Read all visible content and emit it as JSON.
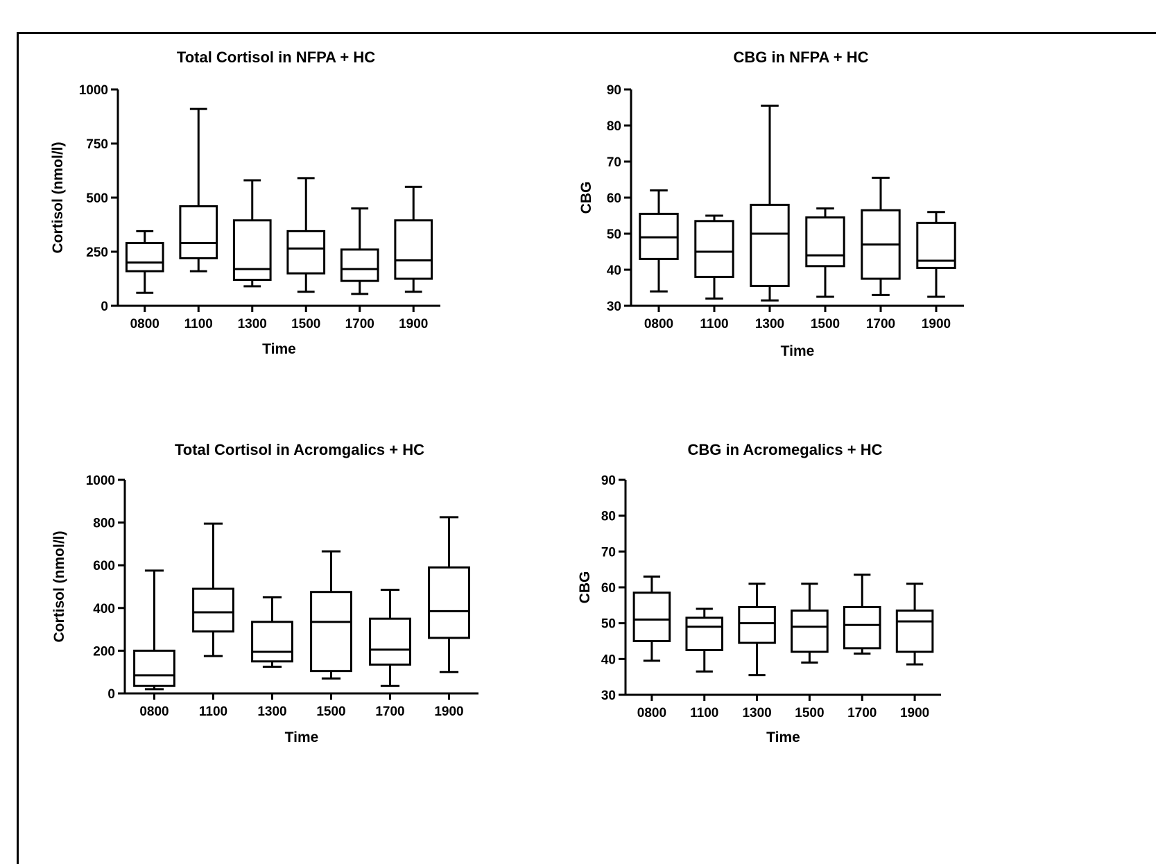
{
  "chart_data": [
    {
      "type": "box",
      "title": "Total Cortisol in NFPA + HC",
      "xlabel": "Time",
      "ylabel": "Cortisol (nmol/l)",
      "ylim": [
        0,
        1000
      ],
      "yticks": [
        "0",
        "250",
        "500",
        "750",
        "1000"
      ],
      "categories": [
        "0800",
        "1100",
        "1300",
        "1500",
        "1700",
        "1900"
      ],
      "boxes": [
        {
          "min": 60,
          "q1": 160,
          "median": 200,
          "q3": 290,
          "max": 345
        },
        {
          "min": 160,
          "q1": 220,
          "median": 290,
          "q3": 460,
          "max": 910
        },
        {
          "min": 90,
          "q1": 120,
          "median": 170,
          "q3": 395,
          "max": 580
        },
        {
          "min": 65,
          "q1": 150,
          "median": 265,
          "q3": 345,
          "max": 590
        },
        {
          "min": 55,
          "q1": 115,
          "median": 170,
          "q3": 260,
          "max": 450
        },
        {
          "min": 65,
          "q1": 125,
          "median": 210,
          "q3": 395,
          "max": 550
        }
      ]
    },
    {
      "type": "box",
      "title": "CBG in NFPA + HC",
      "xlabel": "Time",
      "ylabel": "CBG",
      "ylim": [
        30,
        90
      ],
      "yticks": [
        "30",
        "40",
        "50",
        "60",
        "70",
        "80",
        "90"
      ],
      "categories": [
        "0800",
        "1100",
        "1300",
        "1500",
        "1700",
        "1900"
      ],
      "boxes": [
        {
          "min": 34,
          "q1": 43,
          "median": 49,
          "q3": 55.5,
          "max": 62
        },
        {
          "min": 32,
          "q1": 38,
          "median": 45,
          "q3": 53.5,
          "max": 55
        },
        {
          "min": 31.5,
          "q1": 35.5,
          "median": 50,
          "q3": 58,
          "max": 85.5
        },
        {
          "min": 32.5,
          "q1": 41,
          "median": 44,
          "q3": 54.5,
          "max": 57
        },
        {
          "min": 33,
          "q1": 37.5,
          "median": 47,
          "q3": 56.5,
          "max": 65.5
        },
        {
          "min": 32.5,
          "q1": 40.5,
          "median": 42.5,
          "q3": 53,
          "max": 56
        }
      ]
    },
    {
      "type": "box",
      "title": "Total Cortisol in Acromgalics + HC",
      "xlabel": "Time",
      "ylabel": "Cortisol (nmol/l)",
      "ylim": [
        0,
        1000
      ],
      "yticks": [
        "0",
        "200",
        "400",
        "600",
        "800",
        "1000"
      ],
      "categories": [
        "0800",
        "1100",
        "1300",
        "1500",
        "1700",
        "1900"
      ],
      "boxes": [
        {
          "min": 20,
          "q1": 35,
          "median": 85,
          "q3": 200,
          "max": 575
        },
        {
          "min": 175,
          "q1": 290,
          "median": 380,
          "q3": 490,
          "max": 795
        },
        {
          "min": 125,
          "q1": 150,
          "median": 195,
          "q3": 335,
          "max": 450
        },
        {
          "min": 70,
          "q1": 105,
          "median": 335,
          "q3": 475,
          "max": 665
        },
        {
          "min": 35,
          "q1": 135,
          "median": 205,
          "q3": 350,
          "max": 485
        },
        {
          "min": 100,
          "q1": 260,
          "median": 385,
          "q3": 590,
          "max": 825
        }
      ]
    },
    {
      "type": "box",
      "title": "CBG in Acromegalics + HC",
      "xlabel": "Time",
      "ylabel": "CBG",
      "ylim": [
        30,
        90
      ],
      "yticks": [
        "30",
        "40",
        "50",
        "60",
        "70",
        "80",
        "90"
      ],
      "categories": [
        "0800",
        "1100",
        "1300",
        "1500",
        "1700",
        "1900"
      ],
      "boxes": [
        {
          "min": 39.5,
          "q1": 45,
          "median": 51,
          "q3": 58.5,
          "max": 63
        },
        {
          "min": 36.5,
          "q1": 42.5,
          "median": 49,
          "q3": 51.5,
          "max": 54
        },
        {
          "min": 35.5,
          "q1": 44.5,
          "median": 50,
          "q3": 54.5,
          "max": 61
        },
        {
          "min": 39,
          "q1": 42,
          "median": 49,
          "q3": 53.5,
          "max": 61
        },
        {
          "min": 41.5,
          "q1": 43,
          "median": 49.5,
          "q3": 54.5,
          "max": 63.5
        },
        {
          "min": 38.5,
          "q1": 42,
          "median": 50.5,
          "q3": 53.5,
          "max": 61
        }
      ]
    }
  ]
}
